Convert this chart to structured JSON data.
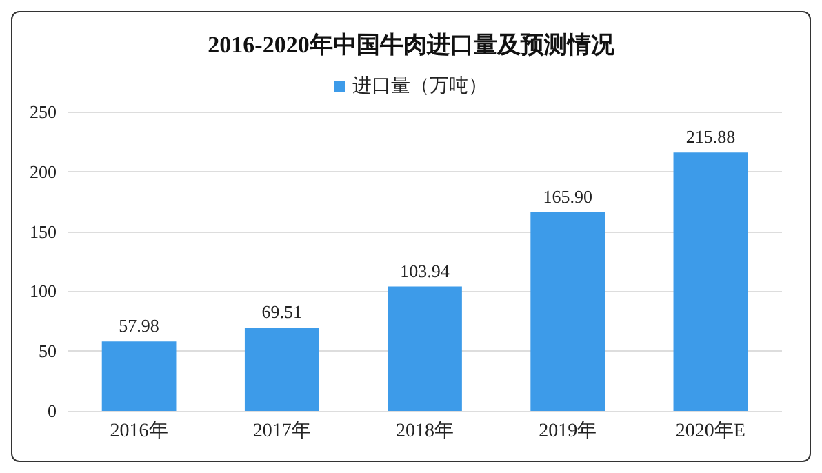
{
  "chart_data": {
    "type": "bar",
    "title": "2016-2020年中国牛肉进口量及预测情况",
    "categories": [
      "2016年",
      "2017年",
      "2018年",
      "2019年",
      "2020年E"
    ],
    "series": [
      {
        "name": "进口量（万吨）",
        "color": "#3d9be9",
        "values": [
          57.98,
          69.51,
          103.94,
          165.9,
          215.88
        ]
      }
    ],
    "value_labels": [
      "57.98",
      "69.51",
      "103.94",
      "165.90",
      "215.88"
    ],
    "ylim": [
      0,
      250
    ],
    "yticks": [
      0,
      50,
      100,
      150,
      200,
      250
    ],
    "grid": "y",
    "legend": "top"
  }
}
